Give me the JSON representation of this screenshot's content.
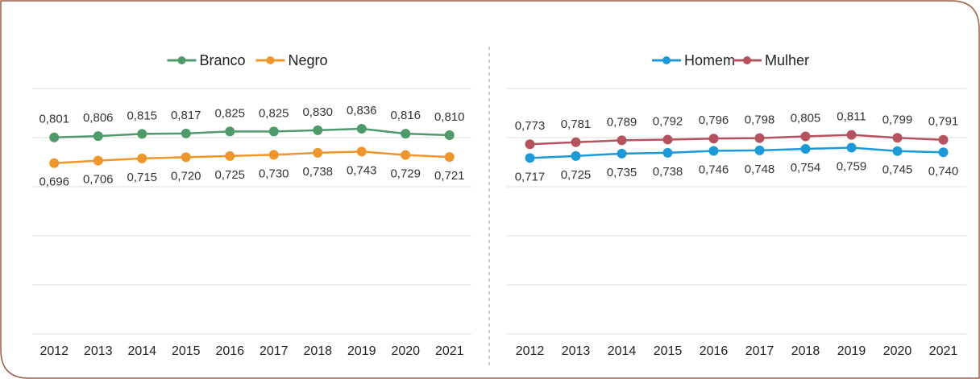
{
  "chart_data": [
    {
      "type": "line",
      "categories": [
        "2012",
        "2013",
        "2014",
        "2015",
        "2016",
        "2017",
        "2018",
        "2019",
        "2020",
        "2021"
      ],
      "ylim": [
        0,
        1
      ],
      "yticks": [
        0,
        0.2,
        0.4,
        0.6,
        0.8,
        1.0
      ],
      "grid": true,
      "legend": "top",
      "series": [
        {
          "name": "Branco",
          "color": "#4e9a6b",
          "label_position": "above",
          "values": [
            0.801,
            0.806,
            0.815,
            0.817,
            0.825,
            0.825,
            0.83,
            0.836,
            0.816,
            0.81
          ],
          "value_labels": [
            "0,801",
            "0,806",
            "0,815",
            "0,817",
            "0,825",
            "0,825",
            "0,830",
            "0,836",
            "0,816",
            "0,810"
          ]
        },
        {
          "name": "Negro",
          "color": "#ee952b",
          "label_position": "below",
          "values": [
            0.696,
            0.706,
            0.715,
            0.72,
            0.725,
            0.73,
            0.738,
            0.743,
            0.729,
            0.721
          ],
          "value_labels": [
            "0,696",
            "0,706",
            "0,715",
            "0,720",
            "0,725",
            "0,730",
            "0,738",
            "0,743",
            "0,729",
            "0,721"
          ]
        }
      ]
    },
    {
      "type": "line",
      "categories": [
        "2012",
        "2013",
        "2014",
        "2015",
        "2016",
        "2017",
        "2018",
        "2019",
        "2020",
        "2021"
      ],
      "ylim": [
        0,
        1
      ],
      "yticks": [
        0,
        0.2,
        0.4,
        0.6,
        0.8,
        1.0
      ],
      "grid": true,
      "legend": "top",
      "series": [
        {
          "name": "Homem",
          "color": "#1b9ad7",
          "label_position": "below",
          "values": [
            0.717,
            0.725,
            0.735,
            0.738,
            0.746,
            0.748,
            0.754,
            0.759,
            0.745,
            0.74
          ],
          "value_labels": [
            "0,717",
            "0,725",
            "0,735",
            "0,738",
            "0,746",
            "0,748",
            "0,754",
            "0,759",
            "0,745",
            "0,740"
          ]
        },
        {
          "name": "Mulher",
          "color": "#b4535d",
          "label_position": "above",
          "values": [
            0.773,
            0.781,
            0.789,
            0.792,
            0.796,
            0.798,
            0.805,
            0.811,
            0.799,
            0.791
          ],
          "value_labels": [
            "0,773",
            "0,781",
            "0,789",
            "0,792",
            "0,796",
            "0,798",
            "0,805",
            "0,811",
            "0,799",
            "0,791"
          ]
        }
      ]
    }
  ]
}
